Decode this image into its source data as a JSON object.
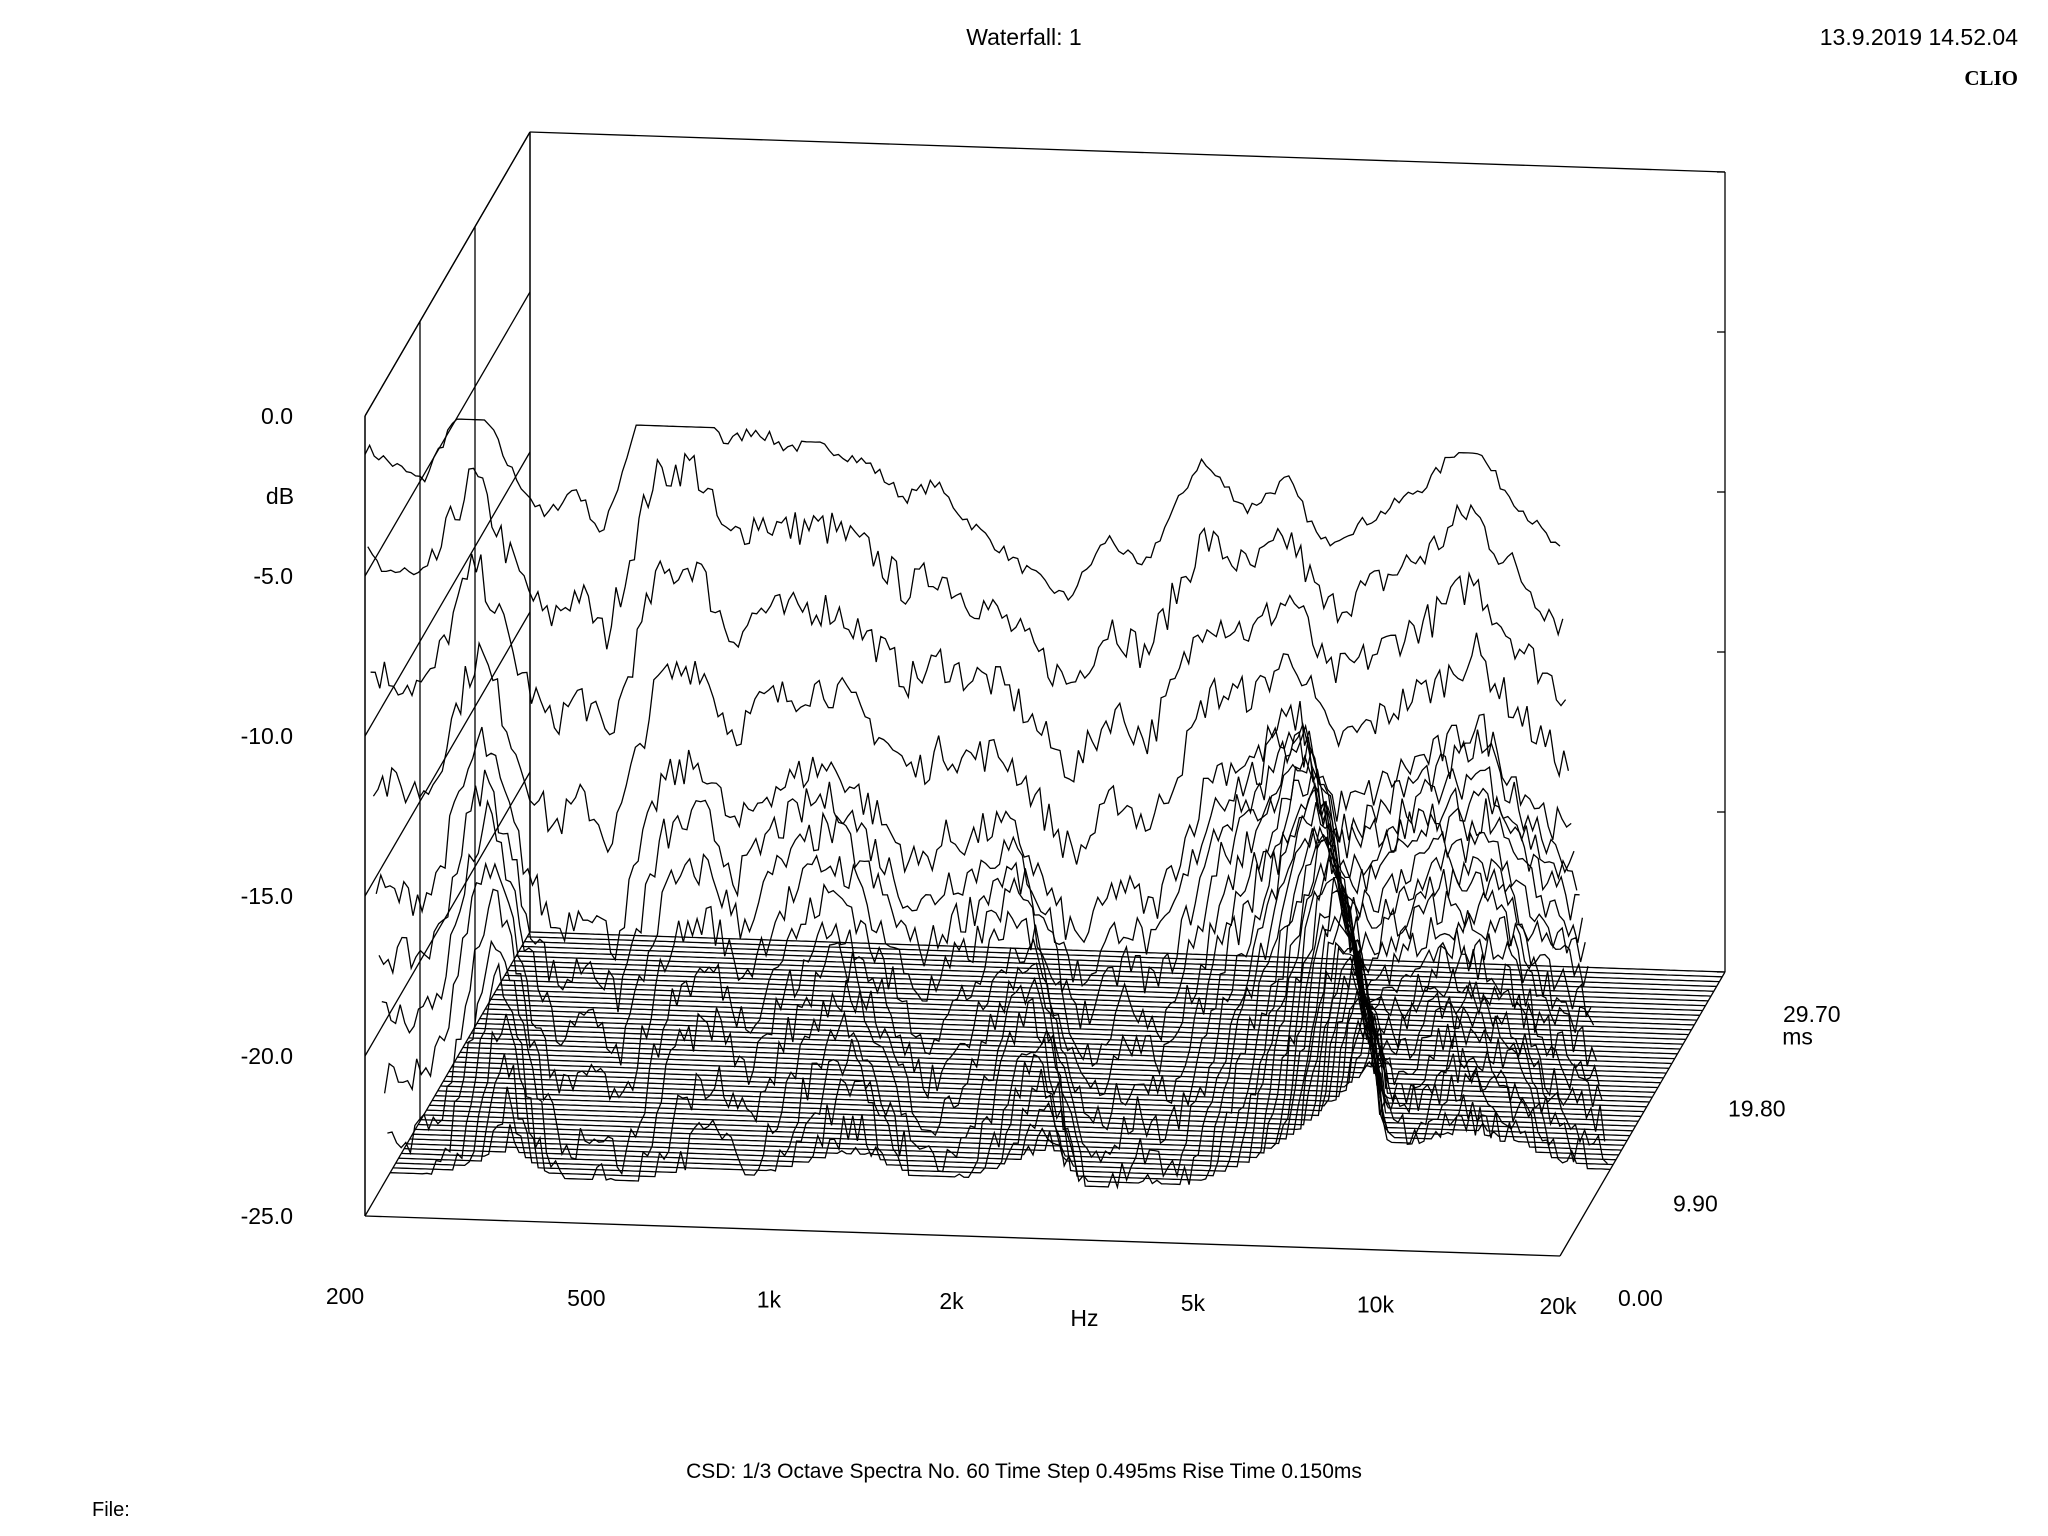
{
  "header": {
    "title": "Waterfall: 1",
    "datestamp": "13.9.2019 14.52.04",
    "brand": "CLIO"
  },
  "footer": {
    "measurement_info": "CSD:   1/3 Octave   Spectra No. 60   Time Step 0.495ms   Rise Time 0.150ms",
    "file_label": "File:"
  },
  "chart_data": {
    "type": "waterfall",
    "title": "Waterfall: 1",
    "x_axis": {
      "label": "Hz",
      "scale": "log",
      "range": [
        200,
        20000
      ],
      "ticks": [
        "200",
        "500",
        "1k",
        "2k",
        "5k",
        "10k",
        "20k"
      ],
      "tick_values": [
        200,
        500,
        1000,
        2000,
        5000,
        10000,
        20000
      ]
    },
    "y_axis": {
      "label": "dB",
      "range": [
        -25,
        0
      ],
      "ticks": [
        "0.0",
        "-5.0",
        "-10.0",
        "-15.0",
        "-20.0",
        "-25.0"
      ],
      "tick_values": [
        0,
        -5,
        -10,
        -15,
        -20,
        -25
      ]
    },
    "z_axis": {
      "label": "ms",
      "range": [
        0,
        29.7
      ],
      "ticks": [
        "0.00",
        "9.90",
        "19.80",
        "29.70"
      ],
      "tick_values": [
        0,
        9.9,
        19.8,
        29.7
      ]
    },
    "spectra_count": 60,
    "time_step_ms": 0.495,
    "rise_time_ms": 0.15,
    "smoothing": "1/3 Octave",
    "first_spectrum": {
      "freq_hz": [
        200,
        250,
        300,
        350,
        400,
        450,
        500,
        600,
        700,
        800,
        900,
        1000,
        1200,
        1400,
        1600,
        1800,
        2000,
        2500,
        3000,
        3500,
        4000,
        5000,
        6000,
        7000,
        8000,
        10000,
        12000,
        14000,
        16000,
        20000
      ],
      "level_db": [
        -1.0,
        -2.0,
        1.0,
        -1.5,
        -3.0,
        -2.0,
        -3.5,
        1.5,
        2.0,
        -0.5,
        0.0,
        -0.5,
        -0.5,
        -1.0,
        -2.0,
        -1.5,
        -2.5,
        -4.0,
        -5.0,
        -3.0,
        -4.0,
        -0.5,
        -2.0,
        -1.0,
        -3.0,
        -2.0,
        -1.0,
        0.5,
        -1.0,
        -3.0
      ]
    }
  }
}
